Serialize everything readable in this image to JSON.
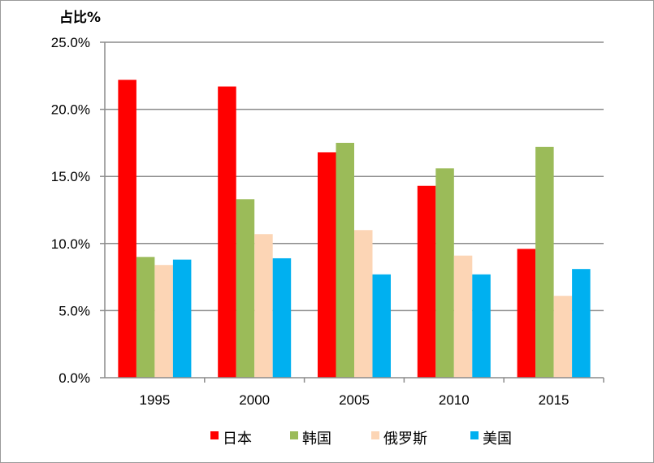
{
  "chart_data": {
    "type": "bar",
    "ylabel": "占比%",
    "ylim": [
      0,
      25
    ],
    "yticks": [
      "0.0%",
      "5.0%",
      "10.0%",
      "15.0%",
      "20.0%",
      "25.0%"
    ],
    "categories": [
      "1995",
      "2000",
      "2005",
      "2010",
      "2015"
    ],
    "grid": true,
    "legend_position": "bottom",
    "series": [
      {
        "name": "日本",
        "color": "#ff0000",
        "values": [
          22.2,
          21.7,
          16.8,
          14.3,
          9.6
        ]
      },
      {
        "name": "韩国",
        "color": "#9bbb59",
        "values": [
          9.0,
          13.3,
          17.5,
          15.6,
          17.2
        ]
      },
      {
        "name": "俄罗斯",
        "color": "#fcd5b5",
        "values": [
          8.4,
          10.7,
          11.0,
          9.1,
          6.1
        ]
      },
      {
        "name": "美国",
        "color": "#00b0f0",
        "values": [
          8.8,
          8.9,
          7.7,
          7.7,
          8.1
        ]
      }
    ]
  }
}
